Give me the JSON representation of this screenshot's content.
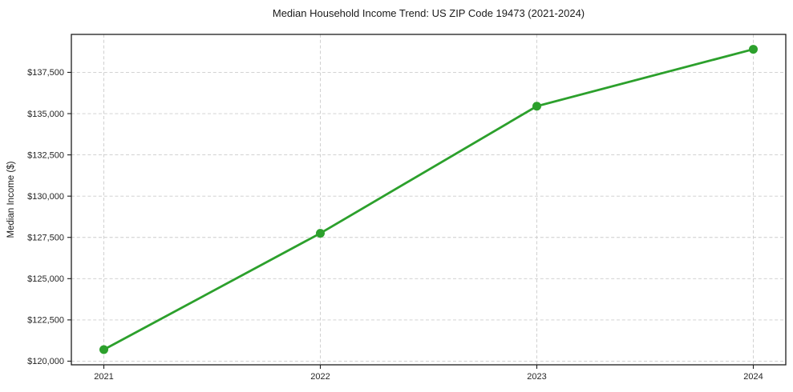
{
  "chart_data": {
    "type": "line",
    "title": "Median Household Income Trend: US ZIP Code 19473 (2021-2024)",
    "xlabel": "",
    "ylabel": "Median Income ($)",
    "x": [
      2021,
      2022,
      2023,
      2024
    ],
    "x_tick_labels": [
      "2021",
      "2022",
      "2023",
      "2024"
    ],
    "series": [
      {
        "name": "Median Household Income",
        "values": [
          120700,
          127750,
          135450,
          138900
        ]
      }
    ],
    "y_ticks": [
      120000,
      122500,
      125000,
      127500,
      130000,
      132500,
      135000,
      137500
    ],
    "y_tick_labels": [
      "$120,000",
      "$122,500",
      "$125,000",
      "$127,500",
      "$130,000",
      "$132,500",
      "$135,000",
      "$137,500"
    ],
    "xlim": [
      2020.85,
      2024.15
    ],
    "ylim": [
      119780,
      139800
    ],
    "grid": true,
    "grid_style": "dashed",
    "legend": "none",
    "colors": {
      "line": "#2ca02c",
      "marker": "#2ca02c",
      "grid": "#cccccc",
      "axis": "#1c1c1c",
      "tick_text": "#262626",
      "background": "#ffffff"
    }
  }
}
